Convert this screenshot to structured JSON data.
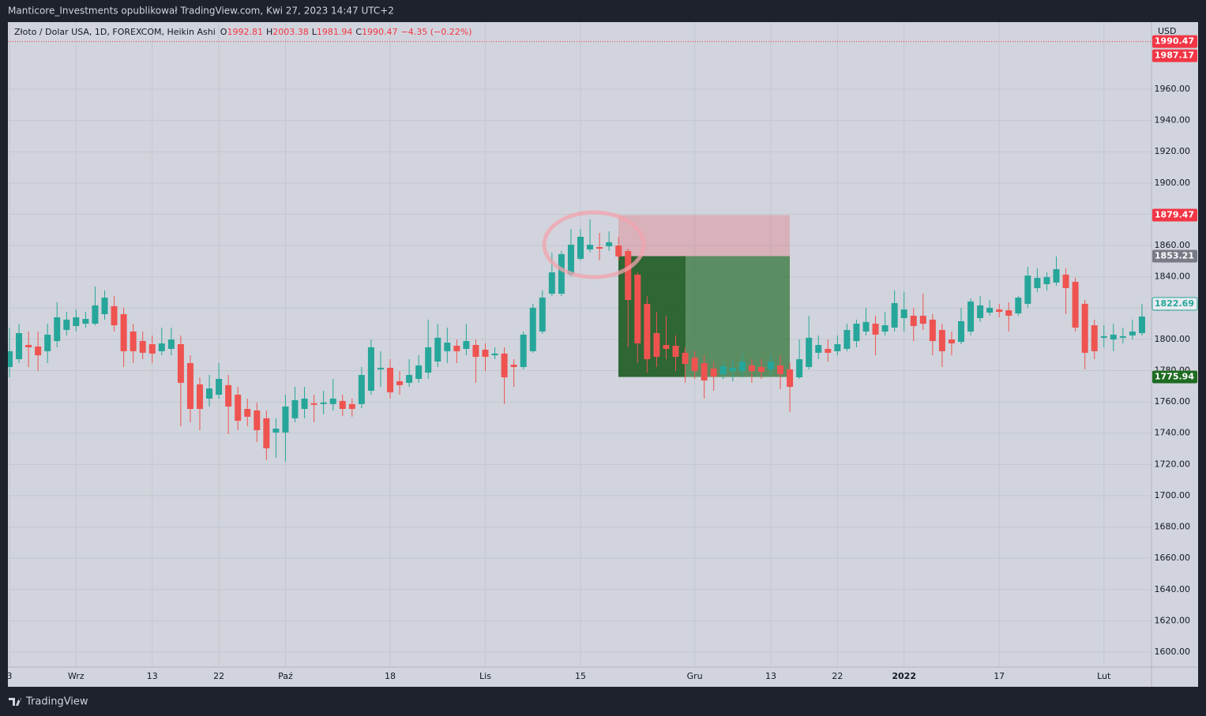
{
  "chart_data": {
    "type": "candlestick",
    "title": "Manticore_Investments opublikował TradingView.com, Kwi 27, 2023 14:47 UTC+2",
    "symbol": "Złoto / Dolar USA, 1D, FOREXCOM, Heikin Ashi",
    "ohlc": [
      {
        "label": "O",
        "value": 1992.81
      },
      {
        "label": "H",
        "value": 2003.38
      },
      {
        "label": "L",
        "value": 1981.94
      },
      {
        "label": "C",
        "value": 1990.47
      }
    ],
    "change": "−4.35 (−0.22%)",
    "currency": "USD",
    "brand": "TradingView",
    "up_color": "#26a69a",
    "down_color": "#ef5350",
    "grid": true,
    "ylim": [
      1590.4,
      2002.9
    ],
    "yticks": [
      {
        "value": 1600,
        "label": "1600.00"
      },
      {
        "value": 1620,
        "label": "1620.00"
      },
      {
        "value": 1640,
        "label": "1640.00"
      },
      {
        "value": 1660,
        "label": "1660.00"
      },
      {
        "value": 1680,
        "label": "1680.00"
      },
      {
        "value": 1700,
        "label": "1700.00"
      },
      {
        "value": 1720,
        "label": "1720.00"
      },
      {
        "value": 1740,
        "label": "1740.00"
      },
      {
        "value": 1760,
        "label": "1760.00"
      },
      {
        "value": 1780,
        "label": "1780.00"
      },
      {
        "value": 1800,
        "label": "1800.00"
      },
      {
        "value": 1820,
        "label": "1820.00"
      },
      {
        "value": 1840,
        "label": "1840.00"
      },
      {
        "value": 1860,
        "label": "1860.00"
      },
      {
        "value": 1880,
        "label": "1880.00"
      },
      {
        "value": 1900,
        "label": "1900.00"
      },
      {
        "value": 1920,
        "label": "1920.00"
      },
      {
        "value": 1940,
        "label": "1940.00"
      },
      {
        "value": 1960,
        "label": "1960.00"
      }
    ],
    "categories": [
      "3",
      null,
      null,
      null,
      null,
      null,
      null,
      "Wrz",
      null,
      null,
      null,
      null,
      null,
      null,
      null,
      "13",
      null,
      null,
      null,
      null,
      null,
      null,
      "22",
      null,
      null,
      null,
      null,
      null,
      null,
      "Paź",
      null,
      null,
      null,
      null,
      null,
      null,
      null,
      null,
      null,
      null,
      "18",
      null,
      null,
      null,
      null,
      null,
      null,
      null,
      null,
      null,
      "Lis",
      null,
      null,
      null,
      null,
      null,
      null,
      null,
      null,
      null,
      "15",
      null,
      null,
      null,
      null,
      null,
      null,
      null,
      null,
      null,
      null,
      null,
      "Gru",
      null,
      null,
      null,
      null,
      null,
      null,
      null,
      "13",
      null,
      null,
      null,
      null,
      null,
      null,
      "22",
      null,
      null,
      null,
      null,
      null,
      null,
      "2022",
      null,
      null,
      null,
      null,
      null,
      null,
      null,
      null,
      null,
      "17",
      null,
      null,
      null,
      null,
      null,
      null,
      null,
      null,
      null,
      null,
      "Lut",
      null,
      null,
      null,
      null
    ],
    "open": [
      1782.3,
      1787.3,
      1796.4,
      1795.4,
      1792.4,
      1798.9,
      1806.0,
      1808.5,
      1810.0,
      1810.0,
      1816.1,
      1821.2,
      1816.1,
      1805.0,
      1798.9,
      1796.9,
      1792.4,
      1793.9,
      1796.9,
      1784.8,
      1771.2,
      1762.1,
      1764.6,
      1770.7,
      1764.6,
      1755.5,
      1754.5,
      1749.5,
      1740.4,
      1740.4,
      1749.5,
      1755.5,
      1759.1,
      1758.6,
      1758.6,
      1760.6,
      1758.6,
      1758.6,
      1767.1,
      1780.8,
      1781.8,
      1773.2,
      1772.2,
      1774.7,
      1778.7,
      1785.8,
      1792.4,
      1795.9,
      1793.9,
      1796.4,
      1793.4,
      1789.8,
      1790.9,
      1783.8,
      1782.3,
      1792.4,
      1805.0,
      1829.2,
      1829.2,
      1841.4,
      1851.5,
      1857.5,
      1859.0,
      1859.5,
      1860.0,
      1856.5,
      1841.4,
      1822.7,
      1804.0,
      1796.4,
      1795.9,
      1791.4,
      1788.3,
      1784.8,
      1781.3,
      1777.7,
      1779.7,
      1779.7,
      1783.3,
      1782.3,
      1780.8,
      1783.3,
      1780.8,
      1775.7,
      1782.3,
      1791.4,
      1793.9,
      1792.4,
      1793.9,
      1798.9,
      1805.0,
      1810.0,
      1805.0,
      1807.5,
      1813.6,
      1815.1,
      1815.1,
      1812.6,
      1806.0,
      1799.9,
      1798.4,
      1805.0,
      1813.6,
      1817.1,
      1819.1,
      1818.6,
      1816.6,
      1822.7,
      1832.8,
      1835.3,
      1836.3,
      1841.4,
      1836.8,
      1822.7,
      1809.0,
      1801.0,
      1799.9,
      1801.0,
      1802.5,
      1804.0
    ],
    "high": [
      1807.5,
      1810.0,
      1805.0,
      1805.0,
      1810.0,
      1823.7,
      1817.6,
      1819.1,
      1817.6,
      1833.8,
      1831.3,
      1827.7,
      1820.2,
      1810.0,
      1805.0,
      1802.5,
      1807.5,
      1807.5,
      1802.5,
      1789.8,
      1775.7,
      1777.2,
      1784.8,
      1777.2,
      1769.6,
      1762.1,
      1759.6,
      1754.5,
      1749.5,
      1764.6,
      1769.6,
      1769.6,
      1764.6,
      1767.1,
      1774.7,
      1764.6,
      1762.1,
      1782.3,
      1799.9,
      1792.4,
      1787.3,
      1779.7,
      1787.3,
      1789.8,
      1812.6,
      1810.0,
      1807.5,
      1799.9,
      1810.0,
      1799.9,
      1797.4,
      1794.9,
      1794.9,
      1787.3,
      1805.0,
      1822.7,
      1831.3,
      1855.5,
      1856.5,
      1870.6,
      1870.6,
      1876.7,
      1868.1,
      1869.1,
      1865.6,
      1858.0,
      1842.8,
      1827.7,
      1817.6,
      1815.1,
      1802.5,
      1794.9,
      1792.4,
      1789.8,
      1785.8,
      1785.8,
      1787.3,
      1790.9,
      1787.3,
      1787.3,
      1789.8,
      1789.8,
      1784.8,
      1799.9,
      1815.1,
      1802.5,
      1799.9,
      1802.5,
      1810.0,
      1812.6,
      1820.2,
      1815.1,
      1817.6,
      1831.3,
      1830.3,
      1820.2,
      1829.2,
      1816.1,
      1810.0,
      1805.0,
      1820.2,
      1826.2,
      1827.7,
      1825.2,
      1822.7,
      1823.7,
      1827.7,
      1846.4,
      1845.4,
      1842.8,
      1853.0,
      1845.4,
      1839.3,
      1825.2,
      1812.6,
      1809.0,
      1810.0,
      1807.5,
      1812.6,
      1822.7
    ],
    "low": [
      1775.7,
      1784.8,
      1782.3,
      1779.7,
      1784.8,
      1794.9,
      1802.5,
      1805.0,
      1807.5,
      1809.0,
      1812.6,
      1805.0,
      1782.3,
      1784.8,
      1787.3,
      1784.8,
      1789.8,
      1789.8,
      1744.4,
      1746.9,
      1741.9,
      1757.0,
      1762.1,
      1739.4,
      1741.9,
      1744.4,
      1734.3,
      1722.7,
      1724.2,
      1721.7,
      1746.9,
      1749.5,
      1746.9,
      1752.0,
      1754.5,
      1751.0,
      1750.5,
      1756.0,
      1764.6,
      1769.6,
      1762.1,
      1764.6,
      1769.6,
      1772.2,
      1774.7,
      1782.3,
      1784.8,
      1784.8,
      1789.8,
      1772.2,
      1779.7,
      1787.3,
      1758.6,
      1769.6,
      1780.8,
      1791.4,
      1803.5,
      1827.7,
      1827.7,
      1840.3,
      1850.5,
      1855.5,
      1850.5,
      1856.5,
      1850.5,
      1794.9,
      1784.8,
      1778.7,
      1782.3,
      1787.3,
      1779.7,
      1772.2,
      1774.7,
      1762.1,
      1767.1,
      1774.7,
      1773.2,
      1775.7,
      1772.2,
      1774.7,
      1777.2,
      1768.1,
      1753.5,
      1774.7,
      1780.8,
      1787.3,
      1785.8,
      1789.8,
      1792.4,
      1794.9,
      1802.5,
      1789.8,
      1802.5,
      1805.0,
      1805.0,
      1798.9,
      1806.0,
      1789.8,
      1782.3,
      1789.8,
      1796.9,
      1802.5,
      1811.1,
      1815.1,
      1814.1,
      1805.0,
      1815.1,
      1820.2,
      1830.3,
      1831.3,
      1834.3,
      1816.1,
      1805.0,
      1780.8,
      1787.3,
      1794.9,
      1792.4,
      1797.4,
      1799.9,
      1802.5
    ],
    "close": [
      1792.4,
      1804.0,
      1794.9,
      1789.8,
      1803.0,
      1814.1,
      1812.6,
      1814.1,
      1813.1,
      1821.7,
      1826.7,
      1809.0,
      1792.4,
      1792.4,
      1791.4,
      1790.9,
      1797.4,
      1799.9,
      1772.2,
      1755.5,
      1755.5,
      1768.6,
      1774.7,
      1757.0,
      1747.9,
      1750.5,
      1741.9,
      1730.3,
      1742.9,
      1757.0,
      1761.1,
      1762.1,
      1758.1,
      1759.6,
      1762.1,
      1755.5,
      1755.5,
      1777.2,
      1794.9,
      1781.8,
      1766.1,
      1770.7,
      1777.2,
      1783.3,
      1794.9,
      1801.0,
      1797.9,
      1792.4,
      1798.9,
      1788.8,
      1788.8,
      1790.9,
      1775.7,
      1782.3,
      1803.0,
      1820.2,
      1826.7,
      1842.8,
      1854.5,
      1860.5,
      1865.6,
      1860.5,
      1858.0,
      1862.1,
      1853.0,
      1825.2,
      1797.4,
      1787.3,
      1788.8,
      1793.9,
      1788.8,
      1784.3,
      1779.7,
      1773.7,
      1776.2,
      1782.8,
      1781.8,
      1785.8,
      1779.7,
      1779.2,
      1785.8,
      1777.7,
      1769.6,
      1787.3,
      1801.0,
      1796.4,
      1791.4,
      1796.9,
      1806.0,
      1810.0,
      1811.1,
      1803.0,
      1809.0,
      1823.2,
      1819.1,
      1808.5,
      1810.0,
      1798.9,
      1792.4,
      1797.4,
      1811.6,
      1824.2,
      1821.7,
      1820.2,
      1817.6,
      1815.1,
      1826.7,
      1840.8,
      1839.3,
      1839.8,
      1844.9,
      1832.8,
      1807.5,
      1791.4,
      1792.4,
      1802.0,
      1803.0,
      1802.0,
      1805.0,
      1814.6
    ],
    "position": {
      "stop": 1879.47,
      "entry": 1853.21,
      "target": 1775.94
    },
    "price_labels": [
      {
        "value": 1990.47,
        "color": "#f23645"
      },
      {
        "value": 1987.17,
        "color": "#f23645"
      },
      {
        "value": 1822.69,
        "color": "#26a69a"
      }
    ]
  }
}
